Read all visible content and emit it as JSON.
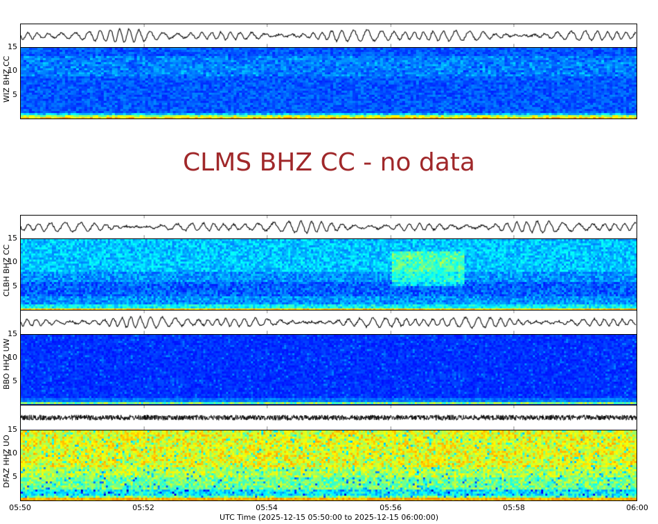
{
  "chart_data": {
    "type": "heatmap",
    "title": "",
    "xlabel": "UTC Time (2025-12-15 05:50:00 to 2025-12-15 06:00:00)",
    "x_ticks": [
      "05:50",
      "05:52",
      "05:54",
      "05:56",
      "05:58",
      "06:00"
    ],
    "y_ticks": [
      "5",
      "10",
      "15"
    ],
    "ylim": [
      0,
      15
    ],
    "colormap": "jet",
    "panels": [
      {
        "station": "WIZ BHZ CC",
        "status": "data",
        "waveform": true,
        "spectrogram_character": "low energy, dark blue with bright band below 1 Hz"
      },
      {
        "station": "CLMS BHZ CC",
        "status": "no data"
      },
      {
        "station": "CLBH BHZ CC",
        "status": "data",
        "waveform": true,
        "spectrogram_character": "moderate blue noise, brighter patch 5-12 Hz near 05:56-05:57"
      },
      {
        "station": "BBO HHZ UW",
        "status": "data",
        "waveform": true,
        "spectrogram_character": "very low energy, dark blue with bright band below 1 Hz"
      },
      {
        "station": "DFAZ HHZ UO",
        "status": "data",
        "waveform": true,
        "spectrogram_character": "high energy, cyan-green-yellow broadband"
      }
    ]
  },
  "panels": {
    "wiz": {
      "label": "WIZ BHZ CC"
    },
    "clms": {
      "label": "CLMS BHZ CC - no data"
    },
    "clbh": {
      "label": "CLBH BHZ CC"
    },
    "bbo": {
      "label": "BBO HHZ UW"
    },
    "dfaz": {
      "label": "DFAZ HHZ UO"
    }
  },
  "yticks": {
    "t5": "5",
    "t10": "10",
    "t15": "15"
  },
  "xticks": {
    "t0": "05:50",
    "t1": "05:52",
    "t2": "05:54",
    "t3": "05:56",
    "t4": "05:58",
    "t5": "06:00"
  },
  "xaxis": {
    "title": "UTC Time (2025-12-15 05:50:00 to 2025-12-15 06:00:00)"
  }
}
